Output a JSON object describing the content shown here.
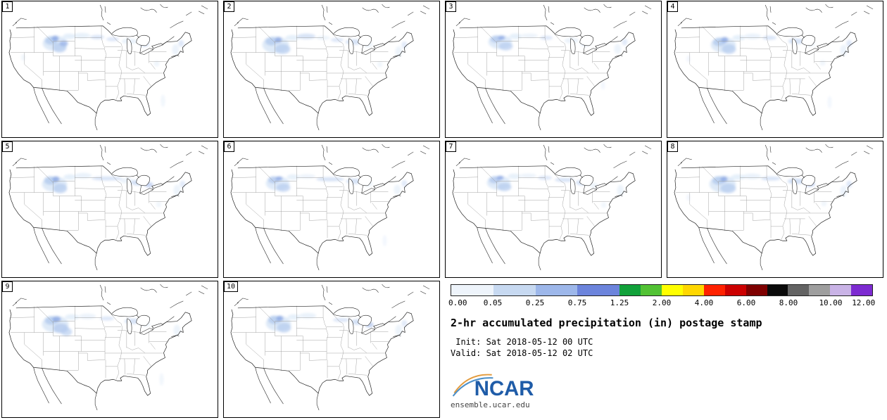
{
  "panels": [
    {
      "label": "1",
      "blobs": [
        [
          76,
          60,
          18,
          11,
          0,
          0.95
        ],
        [
          70,
          56,
          9,
          6,
          1,
          0.85
        ],
        [
          82,
          66,
          10,
          7,
          1,
          0.75
        ],
        [
          76,
          53,
          5,
          4,
          2,
          0.8
        ],
        [
          88,
          60,
          6,
          4,
          2,
          0.6
        ],
        [
          96,
          50,
          9,
          4,
          0,
          0.75
        ],
        [
          114,
          49,
          12,
          4,
          0,
          0.65
        ],
        [
          136,
          51,
          10,
          3,
          1,
          0.5
        ],
        [
          158,
          54,
          9,
          3,
          1,
          0.45
        ],
        [
          182,
          57,
          11,
          4,
          0,
          0.6
        ],
        [
          203,
          61,
          7,
          4,
          1,
          0.5
        ],
        [
          248,
          69,
          5,
          8,
          0,
          0.55
        ],
        [
          256,
          60,
          4,
          5,
          1,
          0.45
        ],
        [
          221,
          89,
          4,
          4,
          0,
          0.45
        ],
        [
          230,
          142,
          3,
          9,
          0,
          0.4
        ],
        [
          30,
          80,
          3,
          5,
          0,
          0.4
        ]
      ]
    },
    {
      "label": "2",
      "blobs": [
        [
          74,
          62,
          19,
          12,
          0,
          0.95
        ],
        [
          68,
          57,
          9,
          6,
          1,
          0.85
        ],
        [
          84,
          68,
          11,
          7,
          1,
          0.75
        ],
        [
          78,
          55,
          5,
          4,
          2,
          0.8
        ],
        [
          98,
          52,
          10,
          4,
          0,
          0.7
        ],
        [
          118,
          50,
          13,
          4,
          1,
          0.55
        ],
        [
          142,
          52,
          10,
          3,
          0,
          0.5
        ],
        [
          162,
          55,
          9,
          3,
          1,
          0.45
        ],
        [
          186,
          58,
          12,
          4,
          1,
          0.55
        ],
        [
          206,
          62,
          7,
          4,
          0,
          0.45
        ],
        [
          250,
          72,
          5,
          8,
          0,
          0.5
        ],
        [
          258,
          62,
          4,
          5,
          1,
          0.4
        ],
        [
          223,
          90,
          4,
          4,
          0,
          0.4
        ]
      ]
    },
    {
      "label": "3",
      "blobs": [
        [
          78,
          58,
          17,
          10,
          0,
          0.9
        ],
        [
          72,
          54,
          8,
          5,
          1,
          0.85
        ],
        [
          86,
          64,
          10,
          6,
          1,
          0.7
        ],
        [
          80,
          52,
          5,
          3,
          2,
          0.8
        ],
        [
          100,
          50,
          9,
          4,
          0,
          0.7
        ],
        [
          120,
          49,
          12,
          3,
          0,
          0.55
        ],
        [
          144,
          52,
          9,
          3,
          1,
          0.45
        ],
        [
          180,
          56,
          10,
          4,
          0,
          0.55
        ],
        [
          200,
          60,
          7,
          4,
          1,
          0.45
        ],
        [
          246,
          68,
          5,
          7,
          0,
          0.5
        ],
        [
          256,
          58,
          4,
          5,
          1,
          0.4
        ],
        [
          225,
          120,
          3,
          6,
          0,
          0.35
        ]
      ]
    },
    {
      "label": "4",
      "blobs": [
        [
          80,
          62,
          18,
          11,
          0,
          0.95
        ],
        [
          74,
          58,
          9,
          6,
          1,
          0.85
        ],
        [
          88,
          68,
          10,
          7,
          1,
          0.75
        ],
        [
          82,
          55,
          5,
          4,
          2,
          0.8
        ],
        [
          102,
          52,
          9,
          4,
          0,
          0.7
        ],
        [
          122,
          50,
          12,
          4,
          0,
          0.6
        ],
        [
          146,
          52,
          10,
          3,
          1,
          0.5
        ],
        [
          184,
          57,
          11,
          4,
          1,
          0.55
        ],
        [
          204,
          61,
          7,
          4,
          0,
          0.45
        ],
        [
          252,
          70,
          5,
          8,
          0,
          0.55
        ],
        [
          260,
          60,
          4,
          5,
          1,
          0.45
        ],
        [
          222,
          88,
          4,
          4,
          0,
          0.4
        ],
        [
          232,
          144,
          3,
          9,
          0,
          0.35
        ],
        [
          30,
          82,
          3,
          5,
          0,
          0.35
        ]
      ]
    },
    {
      "label": "5",
      "blobs": [
        [
          75,
          61,
          18,
          11,
          0,
          0.95
        ],
        [
          69,
          56,
          9,
          6,
          1,
          0.85
        ],
        [
          83,
          67,
          10,
          7,
          1,
          0.75
        ],
        [
          77,
          54,
          5,
          4,
          2,
          0.8
        ],
        [
          97,
          51,
          9,
          4,
          0,
          0.7
        ],
        [
          116,
          49,
          12,
          4,
          0,
          0.6
        ],
        [
          150,
          53,
          22,
          3,
          1,
          0.5
        ],
        [
          178,
          56,
          10,
          4,
          0,
          0.55
        ],
        [
          196,
          59,
          12,
          4,
          1,
          0.6
        ],
        [
          210,
          62,
          6,
          4,
          2,
          0.45
        ],
        [
          250,
          70,
          5,
          8,
          0,
          0.5
        ],
        [
          258,
          61,
          4,
          5,
          1,
          0.4
        ],
        [
          224,
          90,
          4,
          4,
          0,
          0.4
        ]
      ]
    },
    {
      "label": "6",
      "blobs": [
        [
          77,
          60,
          17,
          10,
          0,
          0.9
        ],
        [
          71,
          55,
          8,
          5,
          1,
          0.85
        ],
        [
          85,
          66,
          10,
          6,
          1,
          0.7
        ],
        [
          79,
          53,
          5,
          3,
          2,
          0.8
        ],
        [
          99,
          51,
          9,
          4,
          0,
          0.65
        ],
        [
          119,
          50,
          12,
          3,
          0,
          0.55
        ],
        [
          152,
          54,
          20,
          3,
          1,
          0.55
        ],
        [
          186,
          57,
          11,
          4,
          1,
          0.55
        ],
        [
          206,
          61,
          7,
          4,
          0,
          0.45
        ],
        [
          248,
          69,
          5,
          7,
          0,
          0.5
        ],
        [
          258,
          60,
          4,
          5,
          1,
          0.4
        ],
        [
          230,
          142,
          3,
          8,
          0,
          0.35
        ]
      ]
    },
    {
      "label": "7",
      "blobs": [
        [
          76,
          59,
          17,
          10,
          0,
          0.9
        ],
        [
          70,
          55,
          8,
          5,
          1,
          0.85
        ],
        [
          84,
          65,
          10,
          6,
          1,
          0.75
        ],
        [
          78,
          52,
          5,
          3,
          2,
          0.8
        ],
        [
          98,
          50,
          9,
          4,
          0,
          0.65
        ],
        [
          118,
          49,
          12,
          3,
          0,
          0.55
        ],
        [
          142,
          52,
          10,
          3,
          1,
          0.45
        ],
        [
          170,
          55,
          14,
          3,
          1,
          0.5
        ],
        [
          196,
          59,
          10,
          4,
          1,
          0.55
        ],
        [
          212,
          63,
          6,
          4,
          0,
          0.45
        ],
        [
          250,
          70,
          5,
          8,
          0,
          0.5
        ],
        [
          226,
          91,
          4,
          4,
          0,
          0.4
        ]
      ]
    },
    {
      "label": "8",
      "blobs": [
        [
          79,
          61,
          19,
          12,
          0,
          0.95
        ],
        [
          73,
          56,
          9,
          6,
          1,
          0.85
        ],
        [
          87,
          67,
          11,
          7,
          1,
          0.75
        ],
        [
          81,
          54,
          5,
          4,
          2,
          0.8
        ],
        [
          101,
          51,
          10,
          4,
          0,
          0.7
        ],
        [
          121,
          50,
          13,
          4,
          0,
          0.6
        ],
        [
          148,
          53,
          14,
          3,
          1,
          0.5
        ],
        [
          184,
          57,
          12,
          4,
          1,
          0.6
        ],
        [
          204,
          61,
          7,
          4,
          2,
          0.45
        ],
        [
          252,
          71,
          5,
          8,
          0,
          0.55
        ],
        [
          260,
          61,
          4,
          5,
          1,
          0.45
        ],
        [
          224,
          89,
          4,
          4,
          0,
          0.4
        ],
        [
          30,
          80,
          3,
          5,
          0,
          0.35
        ]
      ]
    },
    {
      "label": "9",
      "blobs": [
        [
          76,
          61,
          19,
          12,
          0,
          0.95
        ],
        [
          70,
          56,
          9,
          6,
          1,
          0.85
        ],
        [
          84,
          67,
          11,
          7,
          1,
          0.8
        ],
        [
          78,
          54,
          6,
          4,
          2,
          0.8
        ],
        [
          92,
          72,
          8,
          6,
          1,
          0.65
        ],
        [
          100,
          51,
          10,
          4,
          0,
          0.7
        ],
        [
          122,
          50,
          12,
          4,
          0,
          0.55
        ],
        [
          150,
          53,
          10,
          3,
          1,
          0.45
        ],
        [
          186,
          57,
          11,
          4,
          1,
          0.55
        ],
        [
          205,
          61,
          7,
          4,
          0,
          0.45
        ],
        [
          250,
          70,
          5,
          8,
          0,
          0.5
        ],
        [
          228,
          140,
          3,
          9,
          0,
          0.4
        ]
      ]
    },
    {
      "label": "10",
      "blobs": [
        [
          78,
          60,
          18,
          11,
          0,
          0.95
        ],
        [
          72,
          55,
          9,
          6,
          1,
          0.85
        ],
        [
          86,
          66,
          10,
          7,
          1,
          0.75
        ],
        [
          80,
          53,
          5,
          4,
          2,
          0.8
        ],
        [
          100,
          51,
          9,
          4,
          0,
          0.7
        ],
        [
          120,
          49,
          12,
          4,
          0,
          0.6
        ],
        [
          168,
          55,
          12,
          3,
          1,
          0.45
        ],
        [
          192,
          58,
          11,
          4,
          1,
          0.6
        ],
        [
          208,
          62,
          6,
          4,
          2,
          0.5
        ],
        [
          250,
          70,
          5,
          8,
          0,
          0.5
        ],
        [
          258,
          60,
          4,
          5,
          1,
          0.4
        ]
      ]
    }
  ],
  "blob_colors": [
    "#dce9f8",
    "#b6ccef",
    "#8ca8e4",
    "#5f7cd8"
  ],
  "colorbar": {
    "segments": [
      {
        "c": "#eef4fb",
        "w": 2
      },
      {
        "c": "#c7d9f1",
        "w": 2
      },
      {
        "c": "#9db7ea",
        "w": 2
      },
      {
        "c": "#6c84dc",
        "w": 2
      },
      {
        "c": "#11a13a",
        "w": 1
      },
      {
        "c": "#52c234",
        "w": 1
      },
      {
        "c": "#ffff00",
        "w": 1
      },
      {
        "c": "#ffd700",
        "w": 1
      },
      {
        "c": "#ff2200",
        "w": 1
      },
      {
        "c": "#cc0000",
        "w": 1
      },
      {
        "c": "#7e0000",
        "w": 1
      },
      {
        "c": "#0a0a0a",
        "w": 1
      },
      {
        "c": "#636363",
        "w": 1
      },
      {
        "c": "#9e9e9e",
        "w": 1
      },
      {
        "c": "#c9b3e6",
        "w": 1
      },
      {
        "c": "#7d2bd1",
        "w": 1
      }
    ],
    "ticks": [
      "0.00",
      "0.05",
      "0.25",
      "0.75",
      "1.25",
      "2.00",
      "4.00",
      "6.00",
      "8.00",
      "10.00",
      "12.00"
    ]
  },
  "legend": {
    "title": "2-hr accumulated precipitation (in) postage stamp",
    "init": " Init: Sat 2018-05-12 00 UTC",
    "valid": "Valid: Sat 2018-05-12 02 UTC",
    "logo": "NCAR",
    "footer": "ensemble.ucar.edu"
  },
  "chart_data": {
    "type": "heatmap",
    "subtype": "ensemble_postage_stamp_precipitation_maps",
    "title": "2-hr accumulated precipitation (in) postage stamp",
    "init_time": "Sat 2018-05-12 00 UTC",
    "valid_time": "Sat 2018-05-12 02 UTC",
    "units": "in",
    "members": [
      "1",
      "2",
      "3",
      "4",
      "5",
      "6",
      "7",
      "8",
      "9",
      "10"
    ],
    "colorbar_ticks": [
      0.0,
      0.05,
      0.25,
      0.75,
      1.25,
      2.0,
      4.0,
      6.0,
      8.0,
      10.0,
      12.0
    ],
    "colorbar_colors": [
      "#eef4fb",
      "#c7d9f1",
      "#9db7ea",
      "#6c84dc",
      "#11a13a",
      "#52c234",
      "#ffff00",
      "#ffd700",
      "#ff2200",
      "#cc0000",
      "#7e0000",
      "#0a0a0a",
      "#636363",
      "#9e9e9e",
      "#c9b3e6",
      "#7d2bd1"
    ],
    "region": "CONUS",
    "legend_position": "bottom-right",
    "description": "Ten ensemble members each showing light precipitation (mostly <= 0.25 in) over the northern Rockies and northern Plains extending in a band to the upper Midwest and Great Lakes, with isolated light amounts over New England, the central Appalachians and off the Southeast coast.",
    "source_text": "ensemble.ucar.edu"
  }
}
